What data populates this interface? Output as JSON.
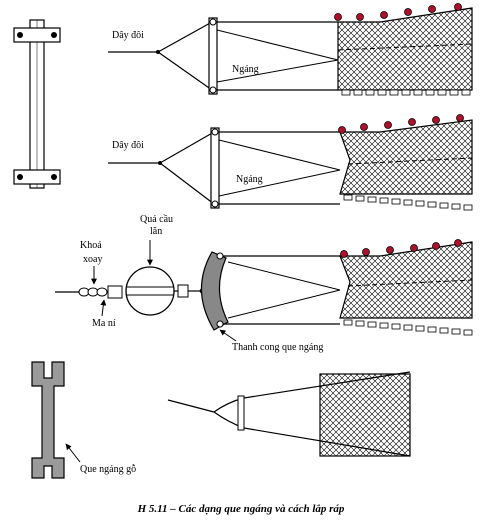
{
  "labels": {
    "day_doi_1": "Dây đôi",
    "ngang_1": "Ngáng",
    "day_doi_2": "Dây đôi",
    "ngang_2": "Ngáng",
    "qua_cau_lan_1": "Quả cầu",
    "qua_cau_lan_2": "lăn",
    "khoa_xoay_1": "Khoá",
    "khoa_xoay_2": "xoay",
    "ma_ni": "Ma ní",
    "thanh_cong": "Thanh cong que ngáng",
    "que_ngang_go": "Que ngáng gỗ"
  },
  "caption": "H 5.11 – Các dạng que ngáng và cách lắp ráp"
}
